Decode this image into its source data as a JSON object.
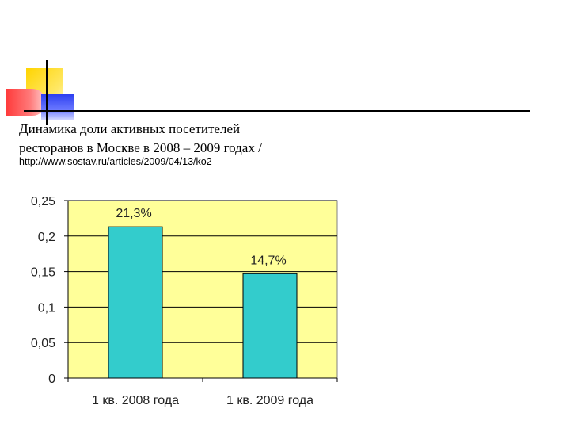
{
  "slide": {
    "title_line1": "Динамика доли активных посетителей",
    "title_line2": "ресторанов в Москве в 2008 – 2009 годах /",
    "source": "http://www.sostav.ru/articles/2009/04/13/ko2"
  },
  "colors": {
    "plot_background": "#ffff99",
    "bar_fill": "#33cccc",
    "bar_stroke": "#000000",
    "gridline": "#000000",
    "deco_yellow": "#ffd400",
    "deco_red": "#ff3b3b",
    "deco_blue": "#2a3df0"
  },
  "chart_data": {
    "type": "bar",
    "categories": [
      "1 кв. 2008 года",
      "1 кв. 2009 года"
    ],
    "values": [
      0.213,
      0.147
    ],
    "data_labels": [
      "21,3%",
      "14,7%"
    ],
    "yticks": [
      0,
      0.05,
      0.1,
      0.15,
      0.2,
      0.25
    ],
    "ytick_labels": [
      "0",
      "0,05",
      "0,1",
      "0,15",
      "0,2",
      "0,25"
    ],
    "ylim": [
      0,
      0.25
    ],
    "grid": true,
    "title": "",
    "xlabel": "",
    "ylabel": ""
  }
}
